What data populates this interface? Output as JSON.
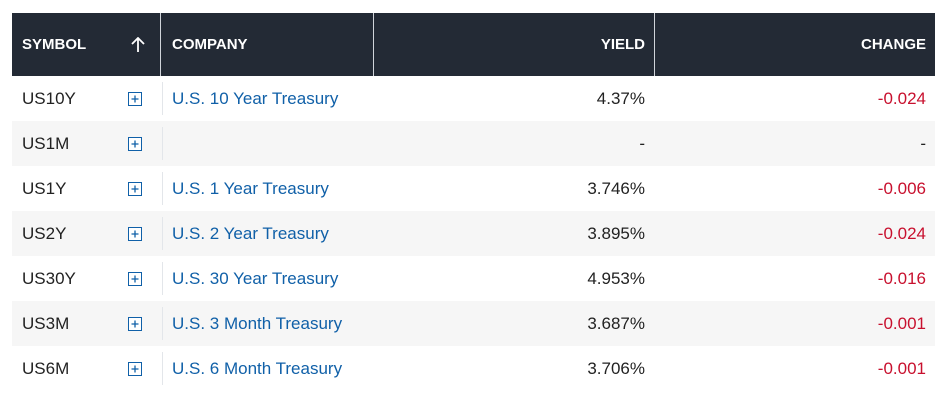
{
  "table": {
    "header": [
      "SYMBOL",
      "COMPANY",
      "YIELD",
      "CHANGE"
    ],
    "rows": [
      [
        "US10Y",
        "U.S. 10 Year Treasury",
        "4.37%",
        "-0.024"
      ],
      [
        "US1M",
        null,
        "-",
        "-"
      ],
      [
        "US1Y",
        "U.S. 1 Year Treasury",
        "3.746%",
        "-0.006"
      ],
      [
        "US2Y",
        "U.S. 2 Year Treasury",
        "3.895%",
        "-0.024"
      ],
      [
        "US30Y",
        "U.S. 30 Year Treasury",
        "4.953%",
        "-0.016"
      ],
      [
        "US3M",
        "U.S. 3 Month Treasury",
        "3.687%",
        "-0.001"
      ],
      [
        "US6M",
        "U.S. 6 Month Treasury",
        "3.706%",
        "-0.001"
      ]
    ]
  }
}
